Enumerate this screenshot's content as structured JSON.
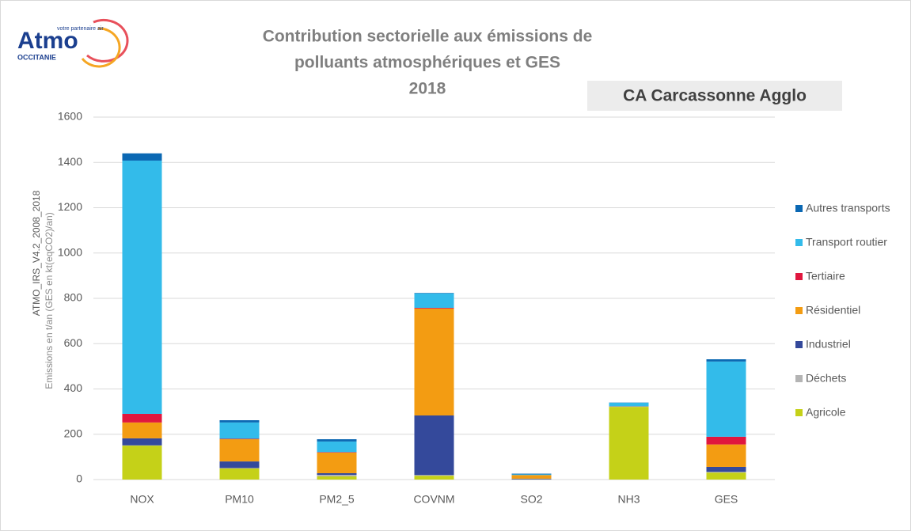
{
  "logo": {
    "name": "Atmo",
    "region": "OCCITANIE",
    "tagline": "votre partenaire air"
  },
  "chart_data": {
    "type": "stacked_bar",
    "title": [
      "Contribution sectorielle aux émissions de",
      "polluants atmosphériques et GES",
      "2018"
    ],
    "subtitle": "CA Carcassonne Agglo",
    "y_label": [
      "ATMO_IRS_V4.2_2008_2018",
      "Emissions en t/an (GES en kt(eqCO2)/an)"
    ],
    "categories": [
      "NOX",
      "PM10",
      "PM2_5",
      "COVNM",
      "SO2",
      "NH3",
      "GES"
    ],
    "series": [
      {
        "name": "Agricole",
        "color": "#c5d118",
        "values": [
          150,
          49,
          14,
          17,
          1,
          321,
          31
        ]
      },
      {
        "name": "Déchets",
        "color": "#b4b4b4",
        "values": [
          1,
          2,
          7,
          3,
          0,
          1,
          3
        ]
      },
      {
        "name": "Industriel",
        "color": "#34499b",
        "values": [
          31,
          29,
          7,
          263,
          3,
          1,
          22
        ]
      },
      {
        "name": "Résidentiel",
        "color": "#f39c12",
        "values": [
          70,
          98,
          91,
          472,
          16,
          1,
          99
        ]
      },
      {
        "name": "Tertiaire",
        "color": "#e0173e",
        "values": [
          38,
          2,
          2,
          3,
          0,
          0,
          34
        ]
      },
      {
        "name": "Transport routier",
        "color": "#33bbea",
        "values": [
          1118,
          72,
          47,
          64,
          3,
          15,
          332
        ]
      },
      {
        "name": "Autres transports",
        "color": "#0b68b3",
        "values": [
          32,
          10,
          10,
          2,
          3,
          1,
          10
        ]
      }
    ],
    "ylim": [
      0,
      1600
    ],
    "yticks": [
      0,
      200,
      400,
      600,
      800,
      1000,
      1200,
      1400,
      1600
    ],
    "grid": true,
    "legend": "right"
  }
}
